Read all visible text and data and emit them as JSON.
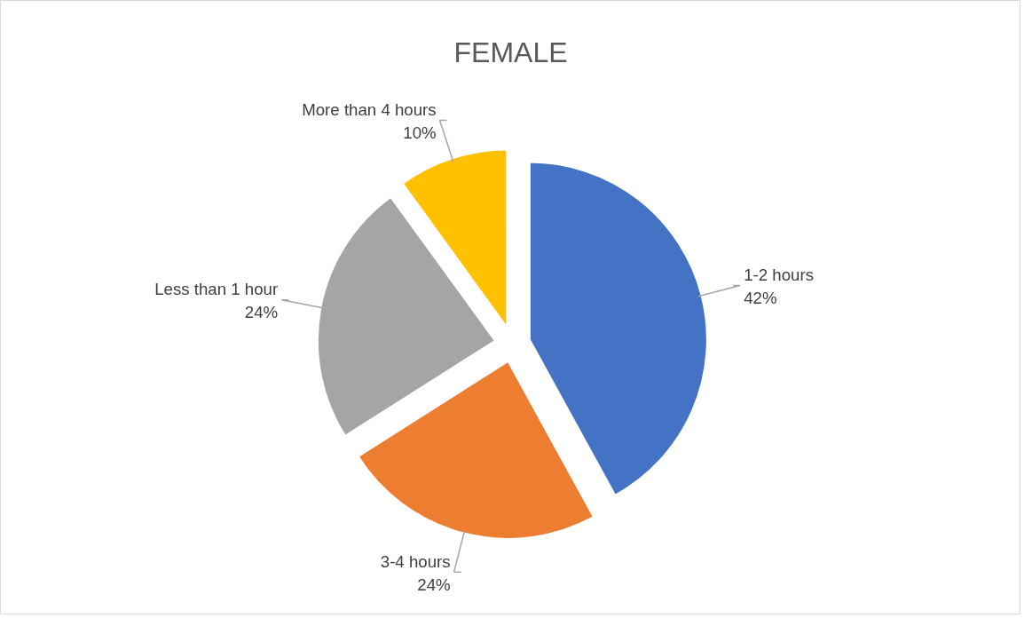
{
  "chart_data": {
    "type": "pie",
    "title": "FEMALE",
    "categories": [
      "1-2 hours",
      "3-4 hours",
      "Less than 1 hour",
      "More than 4 hours"
    ],
    "values": [
      42,
      24,
      24,
      10
    ],
    "value_labels": [
      "42%",
      "24%",
      "24%",
      "10%"
    ],
    "colors": [
      "#4472c4",
      "#ed7d31",
      "#a5a5a5",
      "#ffc000"
    ]
  }
}
